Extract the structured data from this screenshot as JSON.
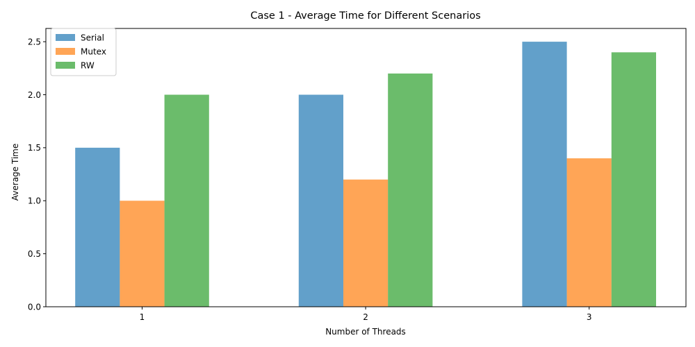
{
  "chart_data": {
    "type": "bar",
    "title": "Case 1 - Average Time for Different Scenarios",
    "xlabel": "Number of Threads",
    "ylabel": "Average Time",
    "categories": [
      "1",
      "2",
      "3"
    ],
    "series": [
      {
        "name": "Serial",
        "values": [
          1.5,
          2.0,
          2.5
        ],
        "color": "#1f77b4"
      },
      {
        "name": "Mutex",
        "values": [
          1.0,
          1.2,
          1.4
        ],
        "color": "#ff7f0e"
      },
      {
        "name": "RW",
        "values": [
          2.0,
          2.2,
          2.4
        ],
        "color": "#2ca02c"
      }
    ],
    "ylim": [
      0,
      2.625
    ],
    "yticks": [
      "0.0",
      "0.5",
      "1.0",
      "1.5",
      "2.0",
      "2.5"
    ],
    "grid": false,
    "legend_position": "top-left",
    "bar_opacity": 0.7
  }
}
